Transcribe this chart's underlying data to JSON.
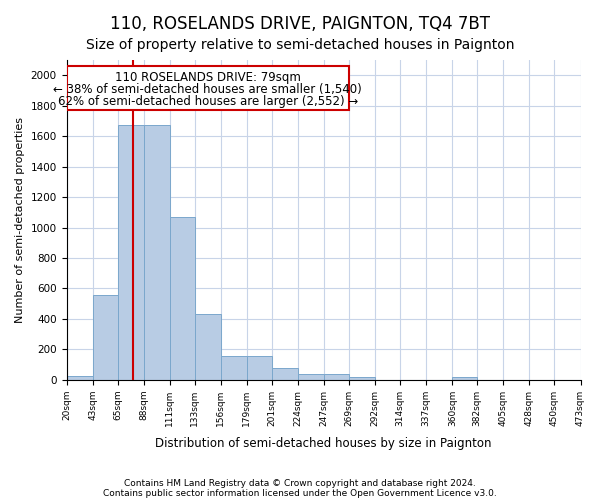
{
  "title": "110, ROSELANDS DRIVE, PAIGNTON, TQ4 7BT",
  "subtitle": "Size of property relative to semi-detached houses in Paignton",
  "xlabel": "Distribution of semi-detached houses by size in Paignton",
  "ylabel": "Number of semi-detached properties",
  "footnote1": "Contains HM Land Registry data © Crown copyright and database right 2024.",
  "footnote2": "Contains public sector information licensed under the Open Government Licence v3.0.",
  "annotation_title": "110 ROSELANDS DRIVE: 79sqm",
  "annotation_line1": "← 38% of semi-detached houses are smaller (1,540)",
  "annotation_line2": "62% of semi-detached houses are larger (2,552) →",
  "property_size": 79,
  "bar_color": "#b8cce4",
  "bar_edge_color": "#7ba7cc",
  "vline_color": "#cc0000",
  "annotation_box_color": "#cc0000",
  "grid_color": "#c8d4e8",
  "bin_edges": [
    20,
    43,
    65,
    88,
    111,
    133,
    156,
    179,
    201,
    224,
    247,
    269,
    292,
    314,
    337,
    360,
    382,
    405,
    428,
    450,
    473
  ],
  "bin_labels": [
    "20sqm",
    "43sqm",
    "65sqm",
    "88sqm",
    "111sqm",
    "133sqm",
    "156sqm",
    "179sqm",
    "201sqm",
    "224sqm",
    "247sqm",
    "269sqm",
    "292sqm",
    "314sqm",
    "337sqm",
    "360sqm",
    "382sqm",
    "405sqm",
    "428sqm",
    "450sqm",
    "473sqm"
  ],
  "values": [
    25,
    560,
    1670,
    1670,
    1070,
    430,
    155,
    155,
    80,
    35,
    35,
    20,
    0,
    0,
    0,
    20,
    0,
    0,
    0,
    0
  ],
  "ylim": [
    0,
    2100
  ],
  "yticks": [
    0,
    200,
    400,
    600,
    800,
    1000,
    1200,
    1400,
    1600,
    1800,
    2000
  ],
  "background_color": "#ffffff",
  "title_fontsize": 12,
  "subtitle_fontsize": 10,
  "annotation_fontsize": 8.5
}
